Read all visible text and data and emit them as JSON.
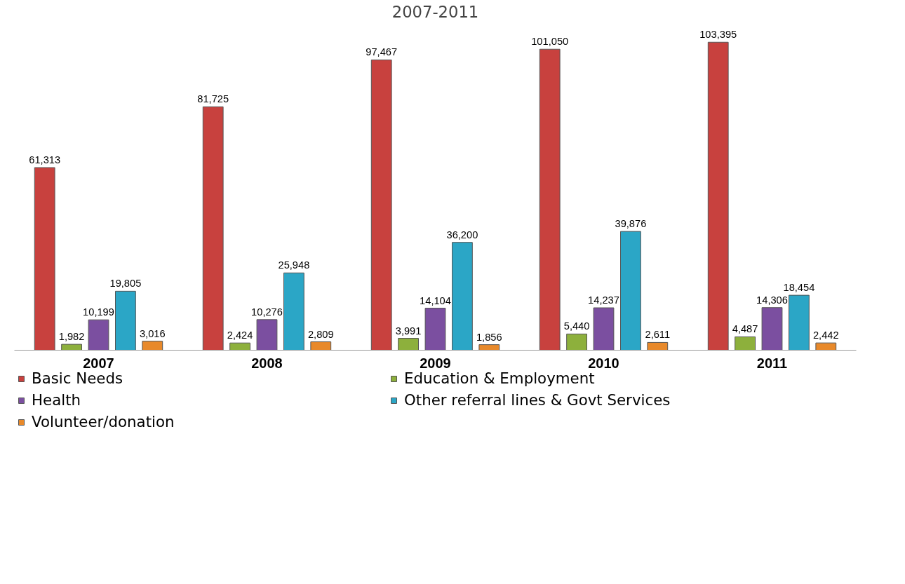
{
  "chart_data": {
    "type": "bar",
    "title": "2007-2011",
    "categories": [
      "2007",
      "2008",
      "2009",
      "2010",
      "2011"
    ],
    "series": [
      {
        "name": "Basic Needs",
        "color": "#c8413e",
        "values": [
          61313,
          81725,
          97467,
          101050,
          103395
        ],
        "value_labels": [
          "61,313",
          "81,725",
          "97,467",
          "101,050",
          "103,395"
        ]
      },
      {
        "name": "Education & Employment",
        "color": "#8db03c",
        "values": [
          1982,
          2424,
          3991,
          5440,
          4487
        ],
        "value_labels": [
          "1,982",
          "2,424",
          "3,991",
          "5,440",
          "4,487"
        ]
      },
      {
        "name": "Health",
        "color": "#7b4fa0",
        "values": [
          10199,
          10276,
          14104,
          14237,
          14306
        ],
        "value_labels": [
          "10,199",
          "10,276",
          "14,104",
          "14,237",
          "14,306"
        ]
      },
      {
        "name": "Other referral lines & Govt Services",
        "color": "#2ba6c6",
        "values": [
          19805,
          25948,
          36200,
          39876,
          18454
        ],
        "value_labels": [
          "19,805",
          "25,948",
          "36,200",
          "39,876",
          "18,454"
        ]
      },
      {
        "name": "Volunteer/donation",
        "color": "#e8892a",
        "values": [
          3016,
          2809,
          1856,
          2611,
          2442
        ],
        "value_labels": [
          "3,016",
          "2,809",
          "1,856",
          "2,611",
          "2,442"
        ]
      }
    ],
    "legend": "bottom",
    "tick_labels": "x",
    "grid": false
  }
}
